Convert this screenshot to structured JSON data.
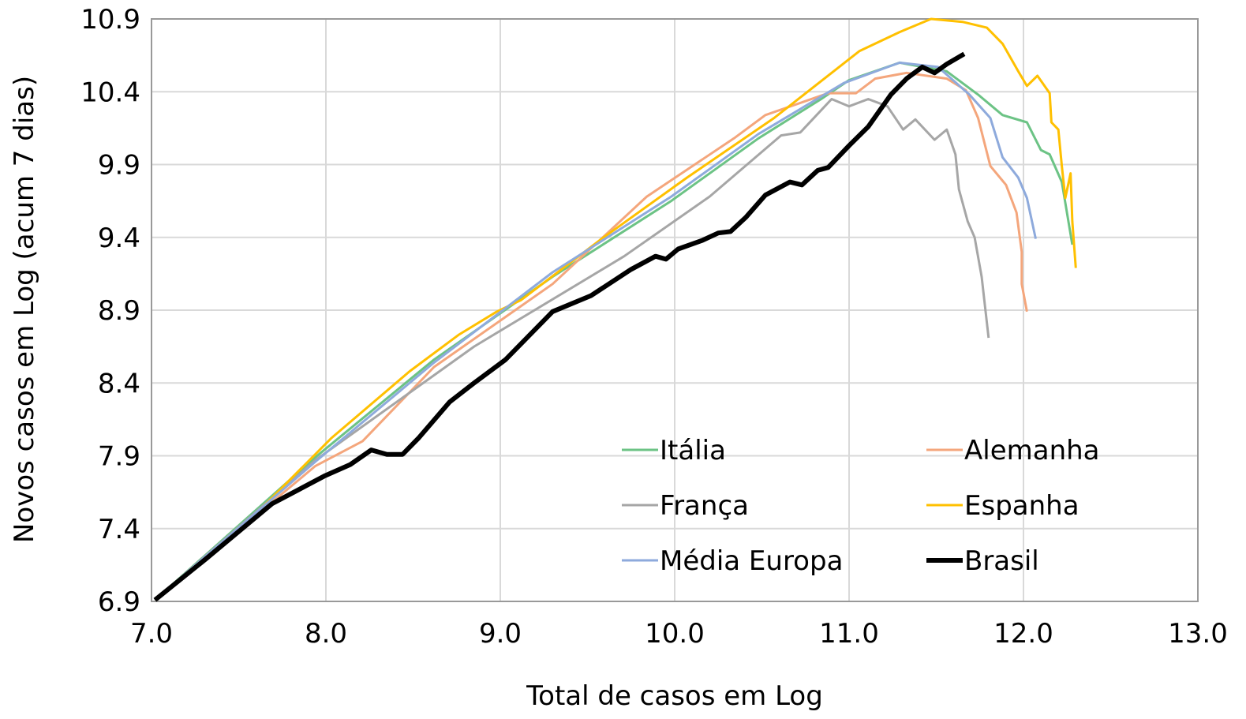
{
  "chart_data": {
    "type": "line",
    "x_label": "Total de casos em Log",
    "y_label": "Novos casos em Log (acum 7 dias)",
    "xlim": [
      7,
      13
    ],
    "xticks": [
      {
        "value": 7,
        "label": "7.0"
      },
      {
        "value": 8,
        "label": "8.0"
      },
      {
        "value": 9,
        "label": "9.0"
      },
      {
        "value": 10,
        "label": "10.0"
      },
      {
        "value": 11,
        "label": "11.0"
      },
      {
        "value": 12,
        "label": "12.0"
      },
      {
        "value": 13,
        "label": "13.0"
      }
    ],
    "ylim": [
      6.9,
      10.9
    ],
    "yticks": [
      6.9,
      7.4,
      7.9,
      8.4,
      8.9,
      9.4,
      9.9,
      10.4,
      10.9
    ],
    "grid": true,
    "legend": "lower right",
    "series": [
      {
        "name": "Itália",
        "color": "#6cc385",
        "width": 3,
        "x": [
          7.02,
          7.94,
          8.62,
          9.3,
          9.98,
          10.48,
          10.84,
          11.0,
          11.29,
          11.56,
          11.74,
          11.88,
          12.02,
          12.1,
          12.15,
          12.22,
          12.28
        ],
        "values": [
          6.91,
          7.89,
          8.56,
          9.13,
          9.65,
          10.08,
          10.35,
          10.48,
          10.6,
          10.54,
          10.38,
          10.24,
          10.19,
          10.0,
          9.97,
          9.78,
          9.35
        ]
      },
      {
        "name": "Alemanha",
        "color": "#f4a67c",
        "width": 3,
        "x": [
          7.02,
          7.94,
          8.21,
          8.62,
          9.3,
          9.84,
          10.34,
          10.52,
          10.88,
          11.04,
          11.15,
          11.33,
          11.56,
          11.67,
          11.74,
          11.81,
          11.9,
          11.96,
          11.99,
          11.99,
          12.02
        ],
        "values": [
          6.91,
          7.83,
          8.0,
          8.51,
          9.08,
          9.68,
          10.08,
          10.24,
          10.39,
          10.39,
          10.49,
          10.53,
          10.49,
          10.41,
          10.22,
          9.89,
          9.76,
          9.57,
          9.3,
          9.08,
          8.89
        ]
      },
      {
        "name": "França",
        "color": "#a6a6a6",
        "width": 3,
        "x": [
          7.02,
          7.94,
          8.85,
          9.71,
          10.2,
          10.61,
          10.72,
          10.9,
          11.0,
          11.11,
          11.22,
          11.31,
          11.38,
          11.49,
          11.56,
          11.61,
          11.63,
          11.68,
          11.72,
          11.76,
          11.8
        ],
        "values": [
          6.91,
          7.87,
          8.65,
          9.27,
          9.68,
          10.1,
          10.12,
          10.35,
          10.3,
          10.35,
          10.3,
          10.14,
          10.21,
          10.07,
          10.14,
          9.97,
          9.73,
          9.51,
          9.4,
          9.13,
          8.71
        ]
      },
      {
        "name": "Espanha",
        "color": "#ffc000",
        "width": 3,
        "x": [
          7.02,
          7.49,
          8.03,
          8.48,
          8.76,
          8.98,
          9.12,
          9.57,
          10.07,
          10.57,
          11.06,
          11.29,
          11.47,
          11.65,
          11.79,
          11.88,
          11.97,
          12.02,
          12.08,
          12.15,
          12.16,
          12.2,
          12.22,
          12.24,
          12.27,
          12.28,
          12.3
        ],
        "values": [
          6.91,
          7.37,
          8.02,
          8.48,
          8.73,
          8.89,
          8.97,
          9.38,
          9.81,
          10.22,
          10.68,
          10.81,
          10.9,
          10.88,
          10.84,
          10.73,
          10.54,
          10.44,
          10.51,
          10.39,
          10.19,
          10.14,
          9.89,
          9.67,
          9.84,
          9.51,
          9.19
        ]
      },
      {
        "name": "Média Europa",
        "color": "#8eaadc",
        "width": 3,
        "x": [
          7.02,
          7.94,
          8.62,
          9.3,
          9.98,
          10.48,
          10.97,
          11.29,
          11.51,
          11.69,
          11.81,
          11.88,
          11.97,
          12.02,
          12.07
        ],
        "values": [
          6.91,
          7.86,
          8.54,
          9.16,
          9.68,
          10.11,
          10.46,
          10.6,
          10.57,
          10.38,
          10.22,
          9.95,
          9.81,
          9.67,
          9.39
        ]
      },
      {
        "name": "Brasil",
        "color": "#000000",
        "width": 6,
        "x": [
          7.02,
          7.31,
          7.69,
          7.99,
          8.14,
          8.26,
          8.35,
          8.44,
          8.53,
          8.71,
          8.85,
          9.03,
          9.3,
          9.52,
          9.75,
          9.89,
          9.95,
          10.02,
          10.16,
          10.25,
          10.32,
          10.41,
          10.52,
          10.66,
          10.73,
          10.82,
          10.88,
          11.0,
          11.11,
          11.24,
          11.33,
          11.42,
          11.49,
          11.56,
          11.66
        ],
        "values": [
          6.91,
          7.19,
          7.57,
          7.76,
          7.84,
          7.94,
          7.91,
          7.91,
          8.02,
          8.27,
          8.4,
          8.56,
          8.89,
          9.0,
          9.18,
          9.27,
          9.25,
          9.32,
          9.38,
          9.43,
          9.44,
          9.54,
          9.69,
          9.78,
          9.76,
          9.86,
          9.88,
          10.03,
          10.16,
          10.38,
          10.49,
          10.57,
          10.53,
          10.59,
          10.66
        ]
      }
    ]
  }
}
